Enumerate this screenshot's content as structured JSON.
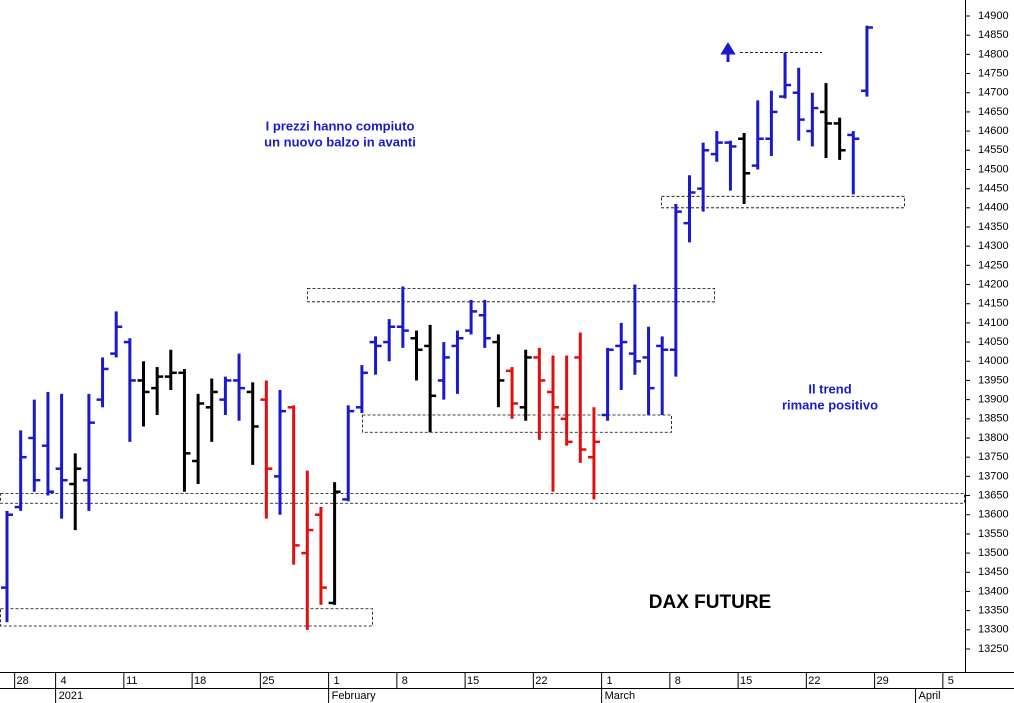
{
  "chart_data": {
    "type": "ohlc",
    "title": "DAX FUTURE",
    "notes": [
      {
        "lines": [
          "I prezzi hanno compiuto",
          "un nuovo balzo in avanti"
        ]
      },
      {
        "lines": [
          "Il trend",
          "rimane positivo"
        ]
      }
    ],
    "categories": [
      null,
      "28",
      null,
      null,
      "4",
      null,
      null,
      null,
      null,
      "11",
      null,
      null,
      null,
      null,
      "18",
      null,
      null,
      null,
      null,
      "25",
      null,
      null,
      null,
      null,
      "1",
      null,
      null,
      null,
      null,
      "8",
      null,
      null,
      null,
      null,
      "15",
      null,
      null,
      null,
      null,
      "22",
      null,
      null,
      null,
      null,
      "1",
      null,
      null,
      null,
      null,
      "8",
      null,
      null,
      null,
      null,
      "15",
      null,
      null,
      null,
      null,
      "22",
      null,
      null,
      null,
      null,
      "29",
      null,
      null,
      null,
      null,
      "5",
      null
    ],
    "months": [
      null,
      null,
      null,
      null,
      "2021",
      null,
      null,
      null,
      null,
      null,
      null,
      null,
      null,
      null,
      null,
      null,
      null,
      null,
      null,
      null,
      null,
      null,
      null,
      null,
      "February",
      null,
      null,
      null,
      null,
      null,
      null,
      null,
      null,
      null,
      null,
      null,
      null,
      null,
      null,
      null,
      null,
      null,
      null,
      null,
      "March",
      null,
      null,
      null,
      null,
      null,
      null,
      null,
      null,
      null,
      null,
      null,
      null,
      null,
      null,
      null,
      null,
      null,
      null,
      null,
      null,
      null,
      null,
      "April",
      null,
      null,
      null
    ],
    "open": [
      13410,
      13620,
      13800,
      13780,
      13720,
      13680,
      13690,
      13900,
      14020,
      14050,
      13950,
      13930,
      13960,
      13970,
      13740,
      13880,
      13900,
      13950,
      13920,
      13900,
      13700,
      13880,
      13500,
      13600,
      13370,
      13640,
      13880,
      14050,
      14050,
      14090,
      14060,
      14040,
      13950,
      14040,
      14080,
      14120,
      14050,
      13975,
      13880,
      14010,
      13920,
      13850,
      14010,
      13750,
      13860,
      14040,
      14020,
      14010,
      14040,
      14030,
      14360,
      14450,
      14540,
      14570,
      14580,
      14510,
      14580,
      14690,
      14700,
      14600,
      14650,
      14620,
      14590,
      14705,
      null,
      null,
      null,
      null,
      null,
      null,
      null
    ],
    "high": [
      13610,
      13820,
      13900,
      13920,
      13915,
      13760,
      13915,
      14010,
      14130,
      14060,
      14000,
      13985,
      14030,
      13980,
      13915,
      13955,
      13960,
      14020,
      13945,
      13950,
      13925,
      13885,
      13715,
      13620,
      13685,
      13885,
      13990,
      14065,
      14110,
      14195,
      14080,
      14095,
      14050,
      14080,
      14160,
      14160,
      14070,
      13985,
      14030,
      14035,
      14015,
      14015,
      14075,
      13880,
      14035,
      14100,
      14200,
      14090,
      14065,
      14410,
      14485,
      14570,
      14600,
      14575,
      14595,
      14680,
      14705,
      14805,
      14765,
      14700,
      14725,
      14635,
      14600,
      14875,
      null,
      null,
      null,
      null,
      null,
      null,
      null
    ],
    "low": [
      13320,
      13610,
      13660,
      13650,
      13590,
      13560,
      13610,
      13880,
      14010,
      13790,
      13830,
      13860,
      13925,
      13660,
      13680,
      13790,
      13860,
      13845,
      13730,
      13590,
      13600,
      13470,
      13300,
      13365,
      13365,
      13635,
      13865,
      13965,
      14000,
      14035,
      13950,
      13815,
      13900,
      13915,
      14070,
      14035,
      13880,
      13850,
      13845,
      13795,
      13660,
      13780,
      13735,
      13640,
      13845,
      13925,
      13965,
      13860,
      13860,
      13960,
      14310,
      14390,
      14520,
      14445,
      14410,
      14500,
      14535,
      14685,
      14575,
      14560,
      14530,
      14525,
      14435,
      14690,
      null,
      null,
      null,
      null,
      null,
      null,
      null
    ],
    "close": [
      13600,
      13750,
      13690,
      13660,
      13690,
      13720,
      13840,
      13980,
      14090,
      13950,
      13920,
      13960,
      13970,
      13760,
      13890,
      13920,
      13950,
      13930,
      13830,
      13720,
      13870,
      13520,
      13560,
      13410,
      13660,
      13870,
      13970,
      14040,
      14090,
      14080,
      14030,
      13910,
      14010,
      14060,
      14130,
      14060,
      13950,
      13890,
      14010,
      13950,
      13880,
      13790,
      13770,
      13790,
      14030,
      14050,
      14000,
      13930,
      14030,
      14390,
      14440,
      14550,
      14570,
      14560,
      14490,
      14580,
      14650,
      14720,
      14630,
      14660,
      14620,
      14550,
      14580,
      14870,
      null,
      null,
      null,
      null,
      null,
      null,
      null
    ],
    "colors": [
      "#1a1acc",
      "#1a1acc",
      "#1a1acc",
      "#1a1acc",
      "#1a1acc",
      "#000000",
      "#1a1acc",
      "#1a1acc",
      "#1a1acc",
      "#1a1acc",
      "#000000",
      "#000000",
      "#000000",
      "#000000",
      "#000000",
      "#000000",
      "#1a1acc",
      "#1a1acc",
      "#000000",
      "#e01010",
      "#1a1acc",
      "#e01010",
      "#e01010",
      "#e01010",
      "#000000",
      "#1a1acc",
      "#1a1acc",
      "#1a1acc",
      "#1a1acc",
      "#1a1acc",
      "#000000",
      "#000000",
      "#1a1acc",
      "#1a1acc",
      "#1a1acc",
      "#1a1acc",
      "#000000",
      "#e01010",
      "#000000",
      "#e01010",
      "#e01010",
      "#e01010",
      "#e01010",
      "#e01010",
      "#1a1acc",
      "#1a1acc",
      "#1a1acc",
      "#1a1acc",
      "#1a1acc",
      "#1a1acc",
      "#1a1acc",
      "#1a1acc",
      "#1a1acc",
      "#1a1acc",
      "#000000",
      "#1a1acc",
      "#1a1acc",
      "#1a1acc",
      "#1a1acc",
      "#1a1acc",
      "#000000",
      "#000000",
      "#1a1acc",
      "#1a1acc",
      null,
      null,
      null,
      null,
      null,
      null,
      null
    ],
    "zones": [
      {
        "low": 13310,
        "high": 13355
      },
      {
        "low": 13630,
        "high": 13655
      },
      {
        "low": 13815,
        "high": 13860
      },
      {
        "low": 14155,
        "high": 14190
      },
      {
        "low": 14400,
        "high": 14430
      }
    ],
    "level": 14805,
    "ylim": [
      13250,
      14900
    ],
    "yticks": [
      13250,
      13300,
      13350,
      13400,
      13450,
      13500,
      13550,
      13600,
      13650,
      13700,
      13750,
      13800,
      13850,
      13900,
      13950,
      14000,
      14050,
      14100,
      14150,
      14200,
      14250,
      14300,
      14350,
      14400,
      14450,
      14500,
      14550,
      14600,
      14650,
      14700,
      14750,
      14800,
      14850,
      14900
    ]
  }
}
